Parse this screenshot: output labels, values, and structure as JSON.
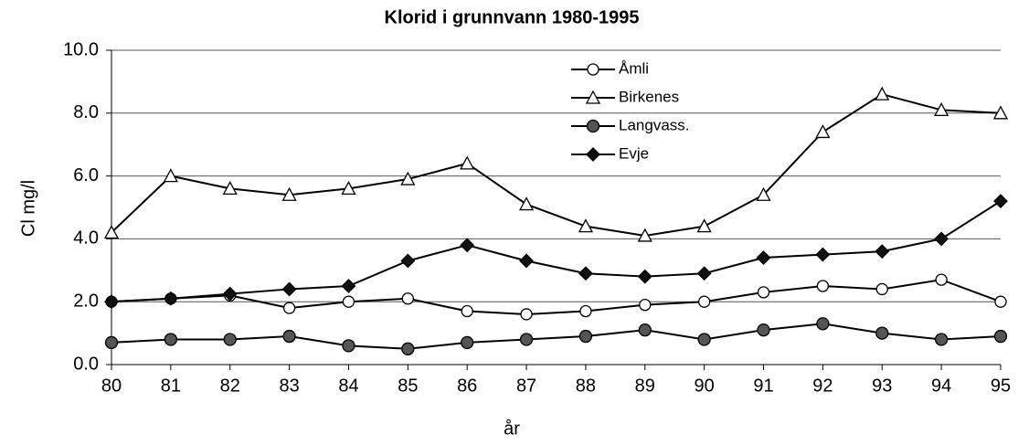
{
  "chart_data": {
    "type": "line",
    "title": "Klorid i grunnvann 1980-1995",
    "x_label": "år",
    "y_label": "Cl mg/l",
    "categories": [
      "80",
      "81",
      "82",
      "83",
      "84",
      "85",
      "86",
      "87",
      "88",
      "89",
      "90",
      "91",
      "92",
      "93",
      "94",
      "95"
    ],
    "ylim": [
      0,
      10
    ],
    "yticks": [
      {
        "value": 0,
        "label": "0.0"
      },
      {
        "value": 2,
        "label": "2.0"
      },
      {
        "value": 4,
        "label": "4.0"
      },
      {
        "value": 6,
        "label": "6.0"
      },
      {
        "value": 8,
        "label": "8.0"
      },
      {
        "value": 10,
        "label": "10.0"
      }
    ],
    "grid": true,
    "legend": "top-right",
    "series": [
      {
        "name": "Åmli",
        "color": "#000000",
        "marker": "circle-open",
        "values": [
          2.0,
          2.1,
          2.2,
          1.8,
          2.0,
          2.1,
          1.7,
          1.6,
          1.7,
          1.9,
          2.0,
          2.3,
          2.5,
          2.4,
          2.7,
          2.0
        ]
      },
      {
        "name": "Birkenes",
        "color": "#000000",
        "marker": "triangle-open",
        "values": [
          4.2,
          6.0,
          5.6,
          5.4,
          5.6,
          5.9,
          6.4,
          5.1,
          4.4,
          4.1,
          4.4,
          5.4,
          7.4,
          8.6,
          8.1,
          8.0
        ]
      },
      {
        "name": "Langvass.",
        "color": "#000000",
        "marker": "circle-gray",
        "values": [
          0.7,
          0.8,
          0.8,
          0.9,
          0.6,
          0.5,
          0.7,
          0.8,
          0.9,
          1.1,
          0.8,
          1.1,
          1.3,
          1.0,
          0.8,
          0.9
        ]
      },
      {
        "name": "Evje",
        "color": "#000000",
        "marker": "diamond",
        "values": [
          2.0,
          2.1,
          2.25,
          2.4,
          2.5,
          3.3,
          3.8,
          3.3,
          2.9,
          2.8,
          2.9,
          3.4,
          3.5,
          3.6,
          4.0,
          5.2
        ]
      }
    ]
  }
}
